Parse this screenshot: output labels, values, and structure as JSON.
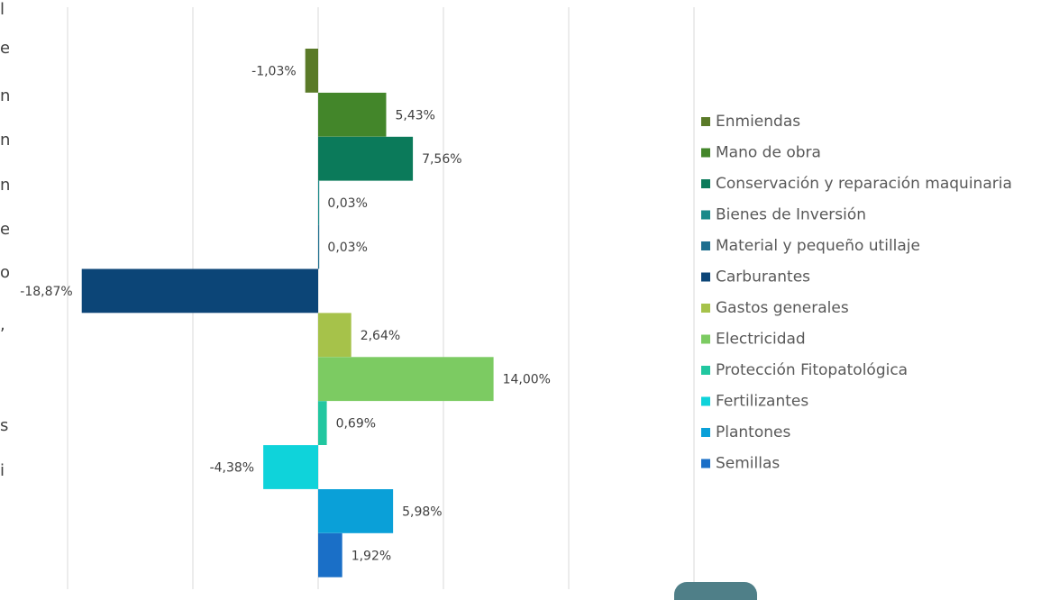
{
  "chart_data": {
    "type": "bar",
    "orientation": "horizontal",
    "categories": [
      "Enmiendas",
      "Mano de obra",
      "Conservación y reparación maquinaria",
      "Bienes de Inversión",
      "Material y pequeño utillaje",
      "Carburantes",
      "Gastos generales",
      "Electricidad",
      "Protección Fitopatológica",
      "Fertilizantes",
      "Plantones",
      "Semillas"
    ],
    "values": [
      -1.03,
      5.43,
      7.56,
      0.03,
      0.03,
      -18.87,
      2.64,
      14.0,
      0.69,
      -4.38,
      5.98,
      1.92
    ],
    "data_labels": [
      "-1,03%",
      "5,43%",
      "7,56%",
      "0,03%",
      "0,03%",
      "-18,87%",
      "2,64%",
      "14,00%",
      "0,69%",
      "-4,38%",
      "5,98%",
      "1,92%"
    ],
    "colors": [
      "#5a7a28",
      "#43862a",
      "#0b7a5a",
      "#1a8a8a",
      "#1f6f8f",
      "#0c4577",
      "#a6c24a",
      "#7ccb62",
      "#21c7a0",
      "#0fd3da",
      "#0aa0d8",
      "#1a6fc7"
    ],
    "xlim": [
      -20,
      30
    ],
    "grid": true,
    "legend_position": "right",
    "title": "",
    "xlabel": "",
    "ylabel": ""
  },
  "left_edge_fragments": [
    "l",
    "e",
    "n",
    "n",
    "n",
    "e",
    "o",
    ",",
    "s",
    "i"
  ]
}
